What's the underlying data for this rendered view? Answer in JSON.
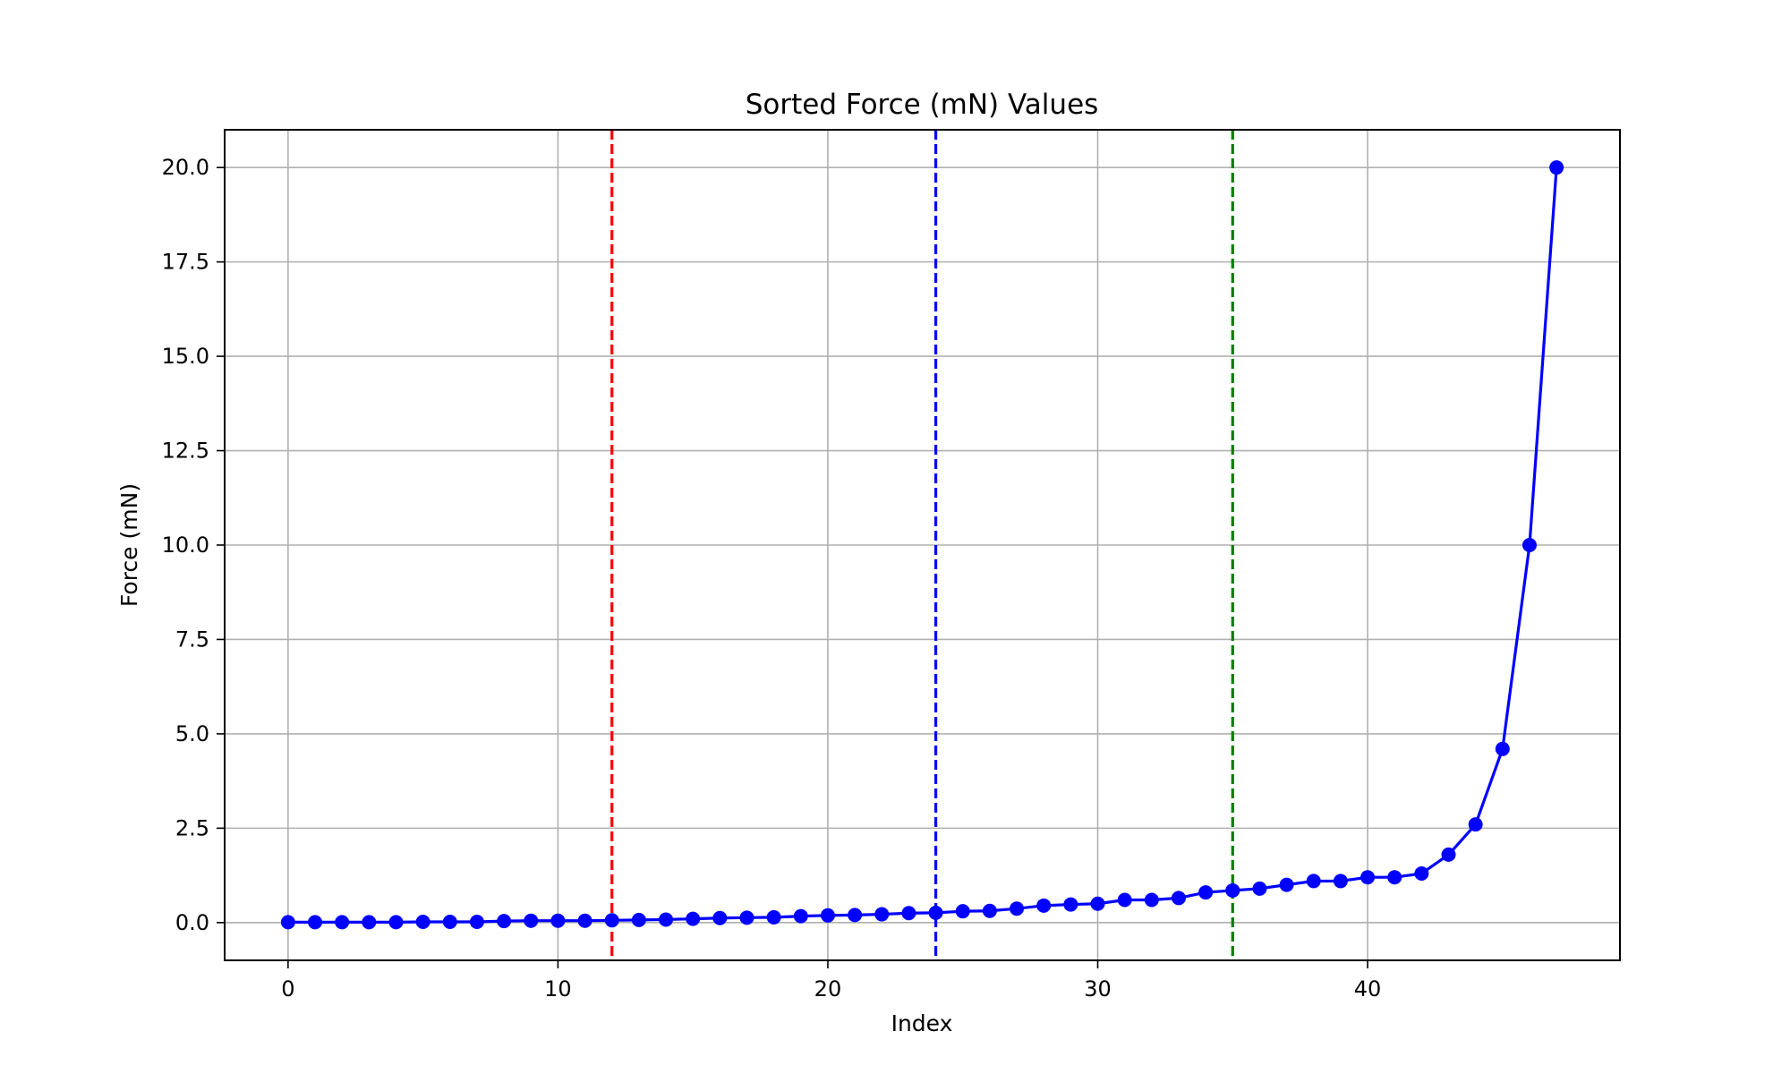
{
  "chart_data": {
    "type": "line",
    "title": "Sorted Force (mN) Values",
    "xlabel": "Index",
    "ylabel": "Force (mN)",
    "xlim": [
      -2.35,
      49.35
    ],
    "ylim": [
      -1.0,
      21.0
    ],
    "xticks": [
      0,
      10,
      20,
      30,
      40
    ],
    "xtick_labels": [
      "0",
      "10",
      "20",
      "30",
      "40"
    ],
    "yticks": [
      0,
      2.5,
      5,
      7.5,
      10,
      12.5,
      15,
      17.5,
      20
    ],
    "ytick_labels": [
      "0.0",
      "2.5",
      "5.0",
      "7.5",
      "10.0",
      "12.5",
      "15.0",
      "17.5",
      "20.0"
    ],
    "grid": true,
    "series": [
      {
        "color": "#0000ff",
        "marker": "circle",
        "x": [
          0,
          1,
          2,
          3,
          4,
          5,
          6,
          7,
          8,
          9,
          10,
          11,
          12,
          13,
          14,
          15,
          16,
          17,
          18,
          19,
          20,
          21,
          22,
          23,
          24,
          25,
          26,
          27,
          28,
          29,
          30,
          31,
          32,
          33,
          34,
          35,
          36,
          37,
          38,
          39,
          40,
          41,
          42,
          43,
          44,
          45,
          46,
          47
        ],
        "y": [
          0.01,
          0.01,
          0.01,
          0.01,
          0.01,
          0.02,
          0.02,
          0.02,
          0.04,
          0.05,
          0.05,
          0.05,
          0.06,
          0.07,
          0.08,
          0.1,
          0.12,
          0.13,
          0.14,
          0.17,
          0.19,
          0.2,
          0.22,
          0.25,
          0.26,
          0.3,
          0.31,
          0.37,
          0.45,
          0.48,
          0.5,
          0.6,
          0.6,
          0.65,
          0.8,
          0.85,
          0.9,
          1.0,
          1.1,
          1.1,
          1.2,
          1.2,
          1.3,
          1.8,
          2.6,
          4.6,
          10.0,
          20.0
        ]
      }
    ],
    "vlines": [
      {
        "x": 12,
        "color": "#ff0000",
        "style": "dashed"
      },
      {
        "x": 24,
        "color": "#0000ff",
        "style": "dashed"
      },
      {
        "x": 35,
        "color": "#008000",
        "style": "dashed"
      }
    ]
  }
}
